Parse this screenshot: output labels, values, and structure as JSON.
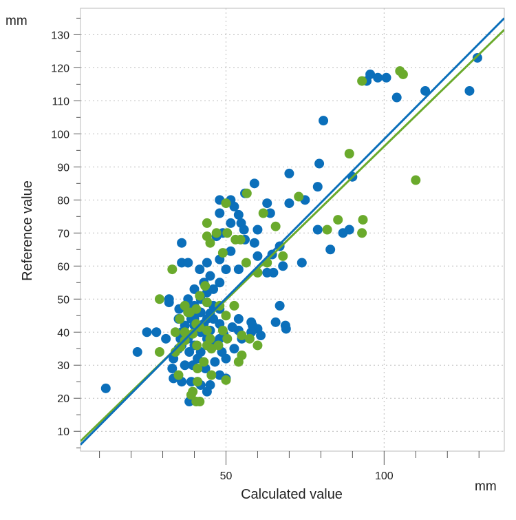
{
  "chart_data": {
    "type": "scatter",
    "title": "",
    "xlabel": "Calculated value",
    "ylabel": "Reference value",
    "x_unit": "mm",
    "y_unit": "mm",
    "xlim": [
      4,
      138
    ],
    "ylim": [
      4,
      138
    ],
    "x_ticks": [
      50,
      100
    ],
    "y_ticks": [
      10,
      20,
      30,
      40,
      50,
      60,
      70,
      80,
      90,
      100,
      110,
      120,
      130
    ],
    "grid": true,
    "legend": "none",
    "series": [
      {
        "color": "#0b6fba",
        "fit_line": {
          "slope": 0.963,
          "intercept": 2.1
        },
        "points": [
          [
            12,
            23
          ],
          [
            22,
            34
          ],
          [
            25,
            40
          ],
          [
            28,
            40
          ],
          [
            31,
            38
          ],
          [
            32,
            49
          ],
          [
            32,
            50
          ],
          [
            36,
            67
          ],
          [
            36,
            61
          ],
          [
            38,
            61
          ],
          [
            80.8,
            104
          ],
          [
            79.5,
            91
          ],
          [
            79,
            84
          ],
          [
            70,
            79
          ],
          [
            75,
            80
          ],
          [
            70,
            88
          ],
          [
            74,
            61
          ],
          [
            67,
            66
          ],
          [
            68,
            60
          ],
          [
            83,
            65
          ],
          [
            87,
            70
          ],
          [
            89,
            71
          ],
          [
            90,
            87
          ],
          [
            79,
            71
          ],
          [
            95.6,
            118
          ],
          [
            98,
            117
          ],
          [
            100.7,
            117
          ],
          [
            94.5,
            116
          ],
          [
            104,
            111
          ],
          [
            113,
            113
          ],
          [
            127,
            113
          ],
          [
            129.5,
            123
          ],
          [
            64,
            76
          ],
          [
            63,
            79
          ],
          [
            59,
            85
          ],
          [
            56,
            82
          ],
          [
            51.5,
            80
          ],
          [
            52.6,
            78
          ],
          [
            54,
            75.5
          ],
          [
            51.5,
            73
          ],
          [
            54.8,
            73
          ],
          [
            48,
            76
          ],
          [
            48,
            80
          ],
          [
            49,
            70
          ],
          [
            47,
            69
          ],
          [
            56,
            68
          ],
          [
            55.7,
            71
          ],
          [
            60,
            71
          ],
          [
            60,
            63
          ],
          [
            64.6,
            63.5
          ],
          [
            65,
            58
          ],
          [
            63,
            58
          ],
          [
            59,
            67
          ],
          [
            51.5,
            64.5
          ],
          [
            50,
            59
          ],
          [
            48,
            55
          ],
          [
            44,
            61
          ],
          [
            41.7,
            59
          ],
          [
            43,
            55
          ],
          [
            40,
            53
          ],
          [
            38.6,
            48
          ],
          [
            39,
            44
          ],
          [
            44,
            49
          ],
          [
            48,
            47
          ],
          [
            54,
            44
          ],
          [
            58,
            43
          ],
          [
            60,
            41
          ],
          [
            58.4,
            42
          ],
          [
            65.7,
            43
          ],
          [
            68.8,
            42
          ],
          [
            67,
            48
          ],
          [
            69,
            41
          ],
          [
            61,
            39
          ],
          [
            58,
            40
          ],
          [
            55,
            38
          ],
          [
            50,
            32
          ],
          [
            50,
            26
          ],
          [
            48,
            27
          ],
          [
            45,
            24
          ],
          [
            44,
            22
          ],
          [
            42,
            24
          ],
          [
            41,
            25
          ],
          [
            38.4,
            19
          ],
          [
            39,
            25
          ],
          [
            36,
            25
          ],
          [
            33.4,
            26
          ],
          [
            33,
            29
          ],
          [
            33.4,
            32
          ],
          [
            35,
            35
          ],
          [
            35.6,
            38
          ],
          [
            37,
            42
          ],
          [
            35,
            44
          ],
          [
            35.2,
            47
          ],
          [
            37,
            48
          ],
          [
            40.6,
            45.7
          ],
          [
            43,
            42.5
          ],
          [
            45,
            40.5
          ],
          [
            47,
            37
          ],
          [
            48.7,
            34
          ],
          [
            46.5,
            31
          ],
          [
            43.5,
            29
          ],
          [
            41,
            32
          ],
          [
            38.4,
            34
          ],
          [
            37,
            30
          ],
          [
            39.5,
            30
          ],
          [
            45,
            45.7
          ],
          [
            48,
            42.5
          ],
          [
            49.3,
            39.4
          ],
          [
            52.6,
            35
          ],
          [
            54,
            40.5
          ],
          [
            52,
            41.5
          ],
          [
            46,
            53
          ],
          [
            45,
            57
          ],
          [
            48,
            62
          ],
          [
            54,
            59
          ],
          [
            38,
            50
          ],
          [
            40,
            48
          ],
          [
            42,
            46
          ],
          [
            44,
            44
          ],
          [
            40,
            42
          ],
          [
            42,
            40
          ],
          [
            38,
            38
          ],
          [
            44,
            38
          ],
          [
            46,
            36
          ],
          [
            40,
            36
          ],
          [
            42,
            34
          ],
          [
            38,
            46
          ],
          [
            36,
            40
          ],
          [
            40,
            44
          ],
          [
            46,
            48
          ],
          [
            44,
            52
          ],
          [
            42,
            50
          ],
          [
            36,
            36
          ],
          [
            46,
            44
          ],
          [
            48,
            38
          ]
        ]
      },
      {
        "color": "#6aaa2c",
        "fit_line": {
          "slope": 0.929,
          "intercept": 3.3
        },
        "points": [
          [
            29,
            50
          ],
          [
            29,
            34
          ],
          [
            33,
            59
          ],
          [
            35.4,
            44
          ],
          [
            37,
            48
          ],
          [
            38.6,
            46
          ],
          [
            40.6,
            47
          ],
          [
            41.7,
            51
          ],
          [
            44,
            49
          ],
          [
            43.4,
            54
          ],
          [
            44,
            73
          ],
          [
            44,
            69
          ],
          [
            45,
            67
          ],
          [
            47,
            70
          ],
          [
            49,
            64
          ],
          [
            50,
            79
          ],
          [
            50.4,
            70
          ],
          [
            53,
            68
          ],
          [
            54.6,
            68
          ],
          [
            56.6,
            82
          ],
          [
            61.8,
            76
          ],
          [
            65.7,
            72
          ],
          [
            56.4,
            61
          ],
          [
            60,
            58
          ],
          [
            63,
            61
          ],
          [
            68,
            63
          ],
          [
            73,
            81
          ],
          [
            82,
            71
          ],
          [
            85.4,
            74
          ],
          [
            89,
            94
          ],
          [
            93,
            116
          ],
          [
            93.3,
            74
          ],
          [
            93,
            70
          ],
          [
            105,
            119
          ],
          [
            106,
            118
          ],
          [
            110,
            86
          ],
          [
            52.6,
            48
          ],
          [
            48,
            48
          ],
          [
            50,
            45
          ],
          [
            49,
            40.5
          ],
          [
            44,
            40.5
          ],
          [
            41.7,
            41.5
          ],
          [
            39.5,
            39.5
          ],
          [
            37,
            37.5
          ],
          [
            34,
            34
          ],
          [
            35.6,
            35.5
          ],
          [
            40.8,
            36
          ],
          [
            44,
            36
          ],
          [
            45.4,
            35
          ],
          [
            47.6,
            36
          ],
          [
            45,
            38
          ],
          [
            50.4,
            38
          ],
          [
            55,
            39
          ],
          [
            54,
            31
          ],
          [
            55,
            33
          ],
          [
            60,
            36
          ],
          [
            57.5,
            38
          ],
          [
            35,
            27
          ],
          [
            41,
            29
          ],
          [
            43,
            31
          ],
          [
            45.4,
            27
          ],
          [
            50,
            25.5
          ],
          [
            39.5,
            22
          ],
          [
            40.6,
            19
          ],
          [
            41.7,
            19
          ],
          [
            39,
            21
          ],
          [
            41,
            25
          ],
          [
            38,
            46
          ],
          [
            40.6,
            42.5
          ],
          [
            37,
            40
          ],
          [
            34,
            40
          ]
        ]
      }
    ]
  }
}
